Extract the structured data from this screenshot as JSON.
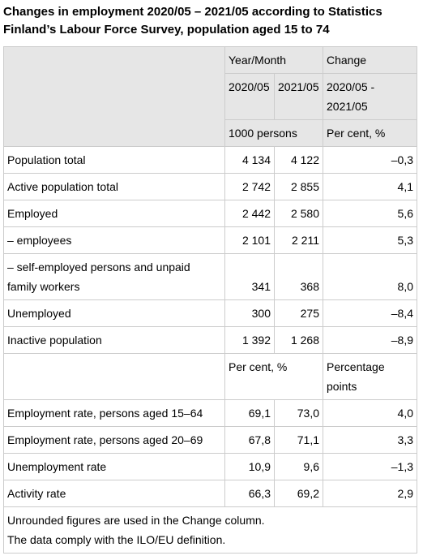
{
  "title": "Changes in employment 2020/05 – 2021/05 according to Statistics Finland’s Labour Force Survey, population aged 15 to 74",
  "table": {
    "header": {
      "year_month": "Year/Month",
      "change": "Change",
      "col1": "2020/05",
      "col2": "2021/05",
      "change_period": "2020/05 - 2021/05",
      "unit1": "1000 persons",
      "unit2": "Per cent, %"
    },
    "rows": [
      [
        "Population total",
        "4 134",
        "4 122",
        "–0,3"
      ],
      [
        "Active population total",
        "2 742",
        "2 855",
        "4,1"
      ],
      [
        "Employed",
        "2 442",
        "2 580",
        "5,6"
      ],
      [
        "– employees",
        "2 101",
        "2 211",
        "5,3"
      ],
      [
        "– self-employed persons and unpaid family workers",
        "341",
        "368",
        "8,0"
      ],
      [
        "Unemployed",
        "300",
        "275",
        "–8,4"
      ],
      [
        "Inactive population",
        "1 392",
        "1 268",
        "–8,9"
      ]
    ],
    "subheader": {
      "unit1": "Per cent, %",
      "unit2": "Percentage points"
    },
    "rows2": [
      [
        "Employment rate, persons aged 15–64",
        "69,1",
        "73,0",
        "4,0"
      ],
      [
        "Employment rate, persons aged 20–69",
        "67,8",
        "71,1",
        "3,3"
      ],
      [
        "Unemployment rate",
        "10,9",
        "9,6",
        "–1,3"
      ],
      [
        "Activity rate",
        "66,3",
        "69,2",
        "2,9"
      ]
    ],
    "notes": [
      "Unrounded figures are used in the Change column.",
      "The data comply with the ILO/EU definition."
    ]
  }
}
